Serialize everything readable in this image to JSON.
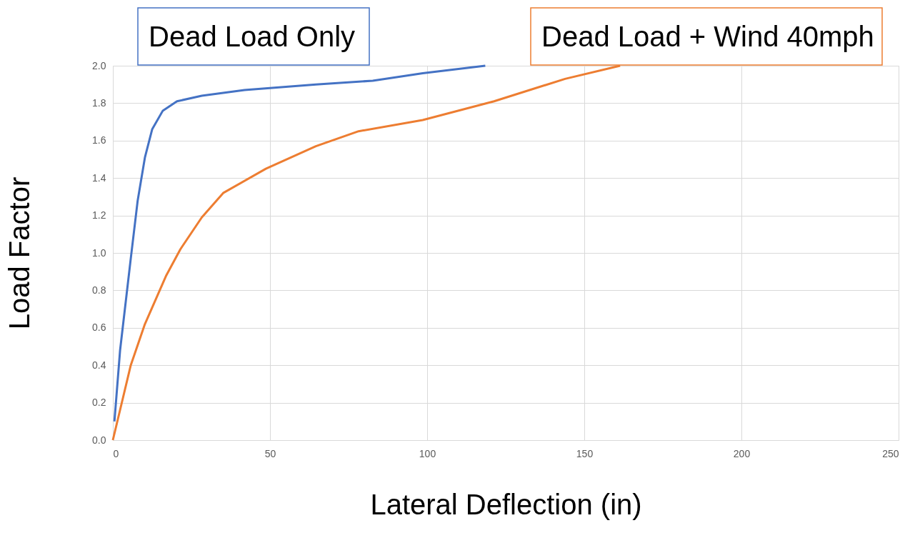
{
  "chart_data": {
    "type": "line",
    "xlabel": "Lateral Deflection (in)",
    "ylabel": "Load Factor",
    "xlim": [
      0,
      250
    ],
    "xticks": [
      0,
      50,
      100,
      150,
      200,
      250
    ],
    "ylim": [
      0,
      2
    ],
    "yticks": [
      {
        "value": 0,
        "label": "0.0"
      },
      {
        "value": 0.2,
        "label": "0.2"
      },
      {
        "value": 0.4,
        "label": "0.4"
      },
      {
        "value": 0.6,
        "label": "0.6"
      },
      {
        "value": 0.8,
        "label": "0.8"
      },
      {
        "value": 1,
        "label": "1.0"
      },
      {
        "value": 1.2,
        "label": "1.2"
      },
      {
        "value": 1.4,
        "label": "1.4"
      },
      {
        "value": 1.6,
        "label": "1.6"
      },
      {
        "value": 1.8,
        "label": "1.8"
      },
      {
        "value": 2,
        "label": "2.0"
      }
    ],
    "grid": true,
    "marker": "none",
    "line_style": "solid",
    "legend": false,
    "series": [
      {
        "name": "Dead Load Only",
        "color": "#4472c4",
        "x": [
          0.5,
          2.3,
          5.7,
          7.9,
          10.2,
          12.5,
          15.9,
          20.4,
          28.3,
          41.9,
          64.6,
          82.7,
          98.6,
          118.5
        ],
        "values": [
          0.1,
          0.48,
          0.97,
          1.28,
          1.51,
          1.66,
          1.76,
          1.81,
          1.84,
          1.87,
          1.9,
          1.92,
          1.96,
          2.0
        ]
      },
      {
        "name": "Dead Load + Wind 40mph",
        "color": "#ed7d31",
        "x": [
          0,
          5.7,
          10.2,
          17,
          21.5,
          28.3,
          35.1,
          48.7,
          64.6,
          78.2,
          98.6,
          121.3,
          143.9,
          161.4
        ],
        "values": [
          0,
          0.4,
          0.62,
          0.88,
          1.02,
          1.19,
          1.32,
          1.45,
          1.57,
          1.65,
          1.71,
          1.81,
          1.93,
          2.0
        ]
      }
    ]
  }
}
